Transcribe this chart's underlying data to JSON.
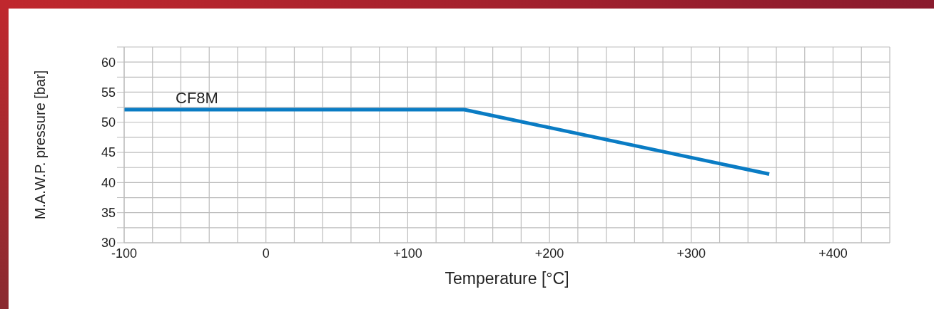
{
  "chart_data": {
    "type": "line",
    "xlabel": "Temperature [°C]",
    "ylabel": "M.A.W.P. pressure [bar]",
    "x": [
      -100,
      140,
      355
    ],
    "series": [
      {
        "name": "CF8M",
        "color": "#0a7cc4",
        "values": [
          52.1,
          52.1,
          41.4
        ]
      }
    ],
    "xlim": [
      -100,
      440
    ],
    "xticks": [
      {
        "value": -100,
        "label": "-100"
      },
      {
        "value": -80,
        "label": null
      },
      {
        "value": -60,
        "label": null
      },
      {
        "value": -40,
        "label": null
      },
      {
        "value": -20,
        "label": null
      },
      0,
      {
        "value": 20,
        "label": null
      },
      {
        "value": 40,
        "label": null
      },
      {
        "value": 60,
        "label": null
      },
      {
        "value": 80,
        "label": null
      },
      {
        "value": 100,
        "label": "+100"
      },
      {
        "value": 120,
        "label": null
      },
      {
        "value": 140,
        "label": null
      },
      {
        "value": 160,
        "label": null
      },
      {
        "value": 180,
        "label": null
      },
      {
        "value": 200,
        "label": "+200"
      },
      {
        "value": 220,
        "label": null
      },
      {
        "value": 240,
        "label": null
      },
      {
        "value": 260,
        "label": null
      },
      {
        "value": 280,
        "label": null
      },
      {
        "value": 300,
        "label": "+300"
      },
      {
        "value": 320,
        "label": null
      },
      {
        "value": 340,
        "label": null
      },
      {
        "value": 360,
        "label": null
      },
      {
        "value": 380,
        "label": null
      },
      {
        "value": 400,
        "label": "+400"
      },
      {
        "value": 420,
        "label": null
      },
      {
        "value": 440,
        "label": null
      }
    ],
    "ylim": [
      30,
      62.5
    ],
    "yticks": [
      30,
      {
        "value": 32.5,
        "label": null
      },
      35,
      {
        "value": 37.5,
        "label": null
      },
      40,
      {
        "value": 42.5,
        "label": null
      },
      45,
      {
        "value": 47.5,
        "label": null
      },
      50,
      {
        "value": 52.5,
        "label": null
      },
      55,
      {
        "value": 57.5,
        "label": null
      },
      60,
      {
        "value": 62.5,
        "label": null
      }
    ],
    "grid": true,
    "legend": false,
    "marker": "none",
    "line_style": "solid"
  }
}
